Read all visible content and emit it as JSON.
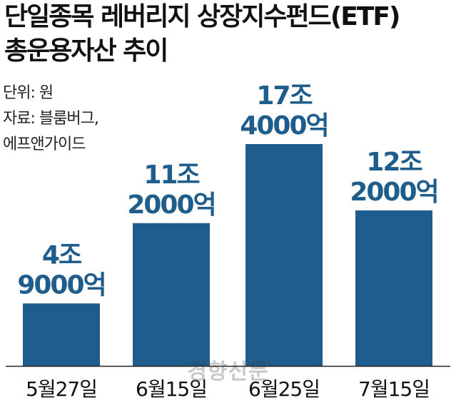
{
  "header": {
    "title_line1": "단일종목 레버리지 상장지수펀드(ETF)",
    "title_line2": "총운용자산 추이"
  },
  "source": {
    "unit": "단위: 원",
    "source_line1": "자료: 블룸버그,",
    "source_line2": "에프앤가이드"
  },
  "watermark": "경향신문",
  "colors": {
    "bar": "#1f5d8c",
    "label": "#1f5d8c",
    "baseline": "#222222"
  },
  "chart_data": {
    "type": "bar",
    "categories": [
      "5월27일",
      "6월15일",
      "6월25일",
      "7월15일"
    ],
    "values": [
      4.9,
      11.2,
      17.4,
      12.2
    ],
    "value_labels": [
      [
        "4조",
        "9000억"
      ],
      [
        "11조",
        "2000억"
      ],
      [
        "17조",
        "4000억"
      ],
      [
        "12조",
        "2000억"
      ]
    ],
    "unit": "원",
    "ylim": [
      0,
      17.4
    ]
  }
}
